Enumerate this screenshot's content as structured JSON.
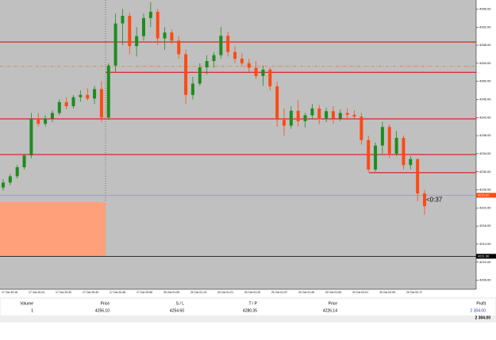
{
  "chart": {
    "ylim": [
      4204,
      4268
    ],
    "yticks": [
      {
        "value": 4266,
        "label": "4266.00"
      },
      {
        "value": 4262,
        "label": "4262.00"
      },
      {
        "value": 4258,
        "label": "4258.00"
      },
      {
        "value": 4254,
        "label": "4254.00"
      },
      {
        "value": 4250,
        "label": "4250.00"
      },
      {
        "value": 4246,
        "label": "4246.00"
      },
      {
        "value": 4242,
        "label": "4242.00"
      },
      {
        "value": 4238,
        "label": "4238.00"
      },
      {
        "value": 4234,
        "label": "4234.00"
      },
      {
        "value": 4230,
        "label": "4230.00"
      },
      {
        "value": 4226,
        "label": "4226.00"
      },
      {
        "value": 4222,
        "label": "4222.00"
      },
      {
        "value": 4218,
        "label": "4218.00"
      },
      {
        "value": 4214,
        "label": "4214.00"
      },
      {
        "value": 4210,
        "label": "4210.00"
      },
      {
        "value": 4206,
        "label": "4206.00"
      }
    ],
    "candles": [
      [
        4226.5,
        4228.4,
        4225.8,
        4227.6
      ],
      [
        4227.6,
        4229.5,
        4227,
        4229
      ],
      [
        4229,
        4231.5,
        4228.5,
        4231
      ],
      [
        4231,
        4234,
        4230.5,
        4233.6
      ],
      [
        4233.6,
        4243,
        4233,
        4241.7
      ],
      [
        4241.7,
        4243,
        4240,
        4240.6
      ],
      [
        4240.6,
        4242.5,
        4240,
        4241.8
      ],
      [
        4241.8,
        4243.6,
        4241,
        4243
      ],
      [
        4243,
        4246,
        4242.5,
        4245.4
      ],
      [
        4245.4,
        4246.5,
        4243.8,
        4244.5
      ],
      [
        4244.5,
        4247,
        4244,
        4246.5
      ],
      [
        4246.5,
        4248,
        4245.5,
        4247
      ],
      [
        4247,
        4248.5,
        4245.8,
        4246.2
      ],
      [
        4246.2,
        4249,
        4245,
        4248.3
      ],
      [
        4248.3,
        4250,
        4241,
        4242
      ],
      [
        4242,
        4254,
        4241.5,
        4253.5
      ],
      [
        4253.5,
        4265,
        4252,
        4262.8
      ],
      [
        4262.8,
        4266,
        4258,
        4264.5
      ],
      [
        4264.5,
        4265.2,
        4256,
        4257.8
      ],
      [
        4257.8,
        4262,
        4255.5,
        4260
      ],
      [
        4260,
        4265,
        4259,
        4264
      ],
      [
        4264,
        4267.5,
        4262,
        4265.4
      ],
      [
        4265.4,
        4266,
        4258,
        4259.5
      ],
      [
        4259.5,
        4262,
        4257,
        4260.8
      ],
      [
        4260.8,
        4261.5,
        4258.3,
        4259
      ],
      [
        4259,
        4260,
        4255,
        4256
      ],
      [
        4256,
        4257,
        4245,
        4247
      ],
      [
        4247,
        4251,
        4246,
        4249.5
      ],
      [
        4249.5,
        4254,
        4249,
        4253.1
      ],
      [
        4253.1,
        4255.8,
        4251.5,
        4254.5
      ],
      [
        4254.5,
        4256.5,
        4253,
        4255.8
      ],
      [
        4255.8,
        4262,
        4255,
        4260.1
      ],
      [
        4260.1,
        4261,
        4255.5,
        4256.5
      ],
      [
        4256.5,
        4257.8,
        4254,
        4255
      ],
      [
        4255,
        4256.2,
        4253.3,
        4254
      ],
      [
        4254,
        4255,
        4252,
        4253
      ],
      [
        4253,
        4254.5,
        4250.5,
        4251.2
      ],
      [
        4251.2,
        4253.5,
        4249,
        4252.6
      ],
      [
        4252.6,
        4253,
        4248,
        4248.9
      ],
      [
        4248.9,
        4250,
        4240,
        4241.5
      ],
      [
        4241.5,
        4244,
        4238,
        4240.2
      ],
      [
        4240.2,
        4244.5,
        4239.5,
        4243.5
      ],
      [
        4243.5,
        4245.8,
        4240,
        4241.2
      ],
      [
        4241.2,
        4243,
        4239.8,
        4242.5
      ],
      [
        4242.5,
        4245,
        4241.8,
        4244
      ],
      [
        4244,
        4244.8,
        4240.5,
        4241.6
      ],
      [
        4241.6,
        4244.2,
        4241,
        4243.4
      ],
      [
        4243.4,
        4244.5,
        4240.6,
        4241.8
      ],
      [
        4241.8,
        4243.8,
        4241.2,
        4243
      ],
      [
        4243,
        4244,
        4241.5,
        4242.6
      ],
      [
        4242.6,
        4243.6,
        4241.8,
        4242.2
      ],
      [
        4242.2,
        4243,
        4236,
        4237
      ],
      [
        4237,
        4238,
        4229.9,
        4230.5
      ],
      [
        4230.5,
        4236.5,
        4230,
        4235.8
      ],
      [
        4235.8,
        4241,
        4234,
        4239.9
      ],
      [
        4239.9,
        4240.5,
        4233,
        4234
      ],
      [
        4234,
        4239,
        4233.5,
        4237.5
      ],
      [
        4237.5,
        4238,
        4230.5,
        4231.5
      ],
      [
        4231.5,
        4233.5,
        4230.5,
        4232.8
      ],
      [
        4232.8,
        4233,
        4223.5,
        4225.2
      ],
      [
        4225.2,
        4226,
        4220.5,
        4222.4
      ]
    ],
    "up_color": "#1e8c1e",
    "down_color": "#ff4a12",
    "levels": [
      4258.7,
      4252,
      4241.7,
      4233.8,
      4229.8
    ],
    "level_color": "#e00000",
    "entry_line": 4253.3,
    "stop_line": 4211.3,
    "zone": [
      4223.3,
      4211.3
    ],
    "bid": 4224.8,
    "bid_label": "4224.80",
    "stop_label": "4211.30",
    "countdown": "<0:37",
    "time_labels": [
      "17 Oct 20:16",
      "17 Oct 20:24",
      "17 Oct 20:32",
      "17 Oct 20:40",
      "17 Oct 20:48",
      "17 Oct 20:56",
      "20 Oct 01:05",
      "20 Oct 01:13",
      "20 Oct 01:21",
      "20 Oct 01:29",
      "20 Oct 01:37",
      "20 Oct 01:45",
      "20 Oct 01:53",
      "20 Oct 02:01",
      "20 Oct 02:09",
      "20 Oct 02:17"
    ]
  },
  "table": {
    "header": [
      "Volume",
      "Price",
      "S / L",
      "T / P",
      "Price",
      "Profit"
    ],
    "row": [
      "1",
      "4256.10",
      "4254.60",
      "4280.35",
      "4226.14",
      "2 304.00"
    ],
    "total": "2 304.00"
  }
}
